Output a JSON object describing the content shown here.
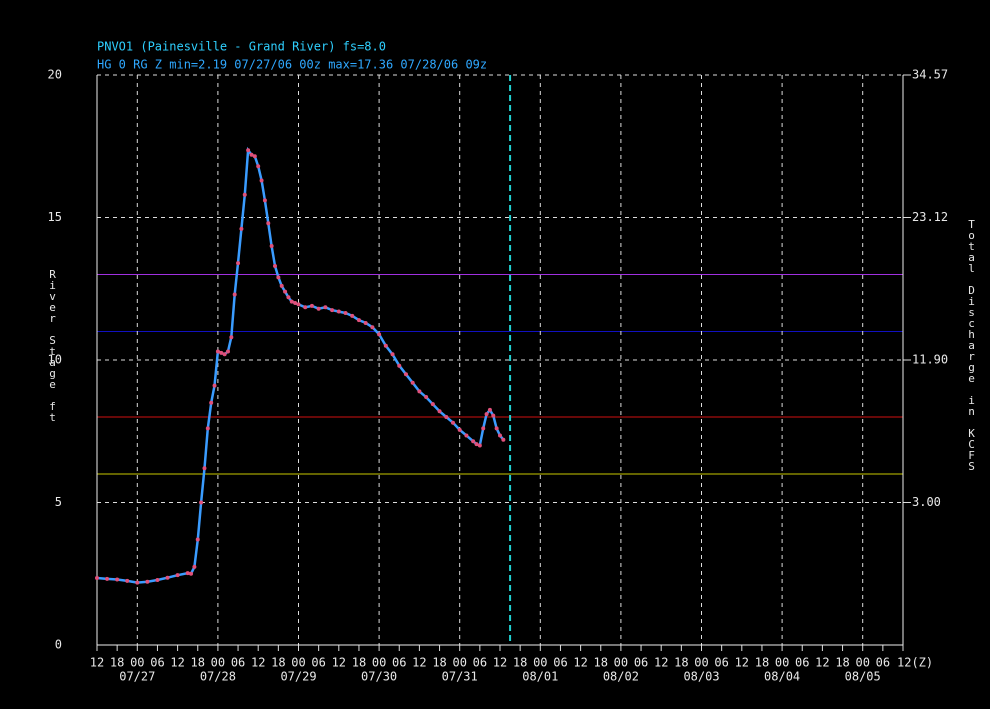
{
  "chart_data": {
    "type": "line",
    "title": "PNVO1 (Painesville - Grand River) fs=8.0",
    "subtitle": "HG 0 RG Z min=2.19 07/27/06 00z max=17.36 07/28/06 09z",
    "ylabel": "River Stage ft",
    "y2label": "Total Discharge in KCFS",
    "xlim": [
      "07/26/06 12z",
      "08/05/06 12z"
    ],
    "ylim": [
      0,
      20
    ],
    "yticks": [
      0,
      5,
      10,
      15,
      20
    ],
    "y2ticks": [
      {
        "value": 3,
        "label": "3.00",
        "stage": 5
      },
      {
        "value": 11.9,
        "label": "11.90",
        "stage": 10
      },
      {
        "value": 23.12,
        "label": "23.12",
        "stage": 15
      },
      {
        "value": 34.57,
        "label": "34.57",
        "stage": 20
      }
    ],
    "xticks": [
      {
        "value": "07/26/06 12z",
        "label": "12"
      },
      {
        "value": "07/26/06 18z",
        "label": "18"
      },
      {
        "value": "07/27/06 00z",
        "label": "00"
      },
      {
        "value": "07/27/06 06z",
        "label": "06"
      },
      {
        "value": "07/27/06 12z",
        "label": "12"
      },
      {
        "value": "07/27/06 18z",
        "label": "18"
      },
      {
        "value": "07/28/06 00z",
        "label": "00"
      },
      {
        "value": "07/28/06 06z",
        "label": "06"
      },
      {
        "value": "07/28/06 12z",
        "label": "12"
      },
      {
        "value": "07/28/06 18z",
        "label": "18"
      },
      {
        "value": "07/29/06 00z",
        "label": "00"
      },
      {
        "value": "07/29/06 06z",
        "label": "06"
      },
      {
        "value": "07/29/06 12z",
        "label": "12"
      },
      {
        "value": "07/29/06 18z",
        "label": "18"
      },
      {
        "value": "07/30/06 00z",
        "label": "00"
      },
      {
        "value": "07/30/06 06z",
        "label": "06"
      },
      {
        "value": "07/30/06 12z",
        "label": "12"
      },
      {
        "value": "07/30/06 18z",
        "label": "18"
      },
      {
        "value": "07/31/06 00z",
        "label": "00"
      },
      {
        "value": "07/31/06 06z",
        "label": "06"
      },
      {
        "value": "07/31/06 12z",
        "label": "12"
      },
      {
        "value": "07/31/06 18z",
        "label": "18"
      },
      {
        "value": "08/01/06 00z",
        "label": "00"
      },
      {
        "value": "08/01/06 06z",
        "label": "06"
      },
      {
        "value": "08/01/06 12z",
        "label": "12"
      },
      {
        "value": "08/01/06 18z",
        "label": "18"
      },
      {
        "value": "08/02/06 00z",
        "label": "00"
      },
      {
        "value": "08/02/06 06z",
        "label": "06"
      },
      {
        "value": "08/02/06 12z",
        "label": "12"
      },
      {
        "value": "08/02/06 18z",
        "label": "18"
      },
      {
        "value": "08/03/06 00z",
        "label": "00"
      },
      {
        "value": "08/03/06 06z",
        "label": "06"
      },
      {
        "value": "08/03/06 12z",
        "label": "12"
      },
      {
        "value": "08/03/06 18z",
        "label": "18"
      },
      {
        "value": "08/04/06 00z",
        "label": "00"
      },
      {
        "value": "08/04/06 06z",
        "label": "06"
      },
      {
        "value": "08/04/06 12z",
        "label": "12"
      },
      {
        "value": "08/04/06 18z",
        "label": "18"
      },
      {
        "value": "08/05/06 00z",
        "label": "00"
      },
      {
        "value": "08/05/06 06z",
        "label": "06"
      },
      {
        "value": "08/05/06 12z",
        "label": "12(Z)"
      }
    ],
    "date_labels": [
      {
        "value": "07/27/06 00z",
        "label": "07/27"
      },
      {
        "value": "07/28/06 00z",
        "label": "07/28"
      },
      {
        "value": "07/29/06 00z",
        "label": "07/29"
      },
      {
        "value": "07/30/06 00z",
        "label": "07/30"
      },
      {
        "value": "07/31/06 00z",
        "label": "07/31"
      },
      {
        "value": "08/01/06 00z",
        "label": "08/01"
      },
      {
        "value": "08/02/06 00z",
        "label": "08/02"
      },
      {
        "value": "08/03/06 00z",
        "label": "08/03"
      },
      {
        "value": "08/04/06 00z",
        "label": "08/04"
      },
      {
        "value": "08/05/06 00z",
        "label": "08/05"
      }
    ],
    "grid": true,
    "thresholds": [
      {
        "value": 13,
        "color": "#a030e0"
      },
      {
        "value": 11,
        "color": "#1010c0"
      },
      {
        "value": 8,
        "color": "#d01010"
      },
      {
        "value": 6,
        "color": "#c8c800"
      }
    ],
    "current_time": {
      "value": "07/31/06 15z",
      "color": "#20d0d0"
    },
    "x": [
      "07/26/06 12z",
      "07/26/06 15z",
      "07/26/06 18z",
      "07/26/06 21z",
      "07/27/06 00z",
      "07/27/06 03z",
      "07/27/06 06z",
      "07/27/06 09z",
      "07/27/06 12z",
      "07/27/06 15z",
      "07/27/06 16z",
      "07/27/06 17z",
      "07/27/06 18z",
      "07/27/06 19z",
      "07/27/06 20z",
      "07/27/06 21z",
      "07/27/06 22z",
      "07/27/06 23z",
      "07/28/06 00z",
      "07/28/06 01z",
      "07/28/06 02z",
      "07/28/06 03z",
      "07/28/06 04z",
      "07/28/06 05z",
      "07/28/06 06z",
      "07/28/06 07z",
      "07/28/06 08z",
      "07/28/06 09z",
      "07/28/06 10z",
      "07/28/06 11z",
      "07/28/06 12z",
      "07/28/06 13z",
      "07/28/06 14z",
      "07/28/06 15z",
      "07/28/06 16z",
      "07/28/06 17z",
      "07/28/06 18z",
      "07/28/06 19z",
      "07/28/06 20z",
      "07/28/06 21z",
      "07/28/06 22z",
      "07/28/06 23z",
      "07/29/06 00z",
      "07/29/06 02z",
      "07/29/06 04z",
      "07/29/06 06z",
      "07/29/06 08z",
      "07/29/06 10z",
      "07/29/06 12z",
      "07/29/06 14z",
      "07/29/06 16z",
      "07/29/06 18z",
      "07/29/06 20z",
      "07/29/06 22z",
      "07/30/06 00z",
      "07/30/06 02z",
      "07/30/06 04z",
      "07/30/06 06z",
      "07/30/06 08z",
      "07/30/06 10z",
      "07/30/06 12z",
      "07/30/06 14z",
      "07/30/06 16z",
      "07/30/06 18z",
      "07/30/06 20z",
      "07/30/06 22z",
      "07/31/06 00z",
      "07/31/06 02z",
      "07/31/06 04z",
      "07/31/06 05z",
      "07/31/06 06z",
      "07/31/06 07z",
      "07/31/06 08z",
      "07/31/06 09z",
      "07/31/06 10z",
      "07/31/06 11z",
      "07/31/06 12z",
      "07/31/06 13z"
    ],
    "series": [
      {
        "color": "#3a9cff",
        "marker_color": "#e0507a",
        "values": [
          2.35,
          2.32,
          2.3,
          2.25,
          2.19,
          2.22,
          2.28,
          2.36,
          2.45,
          2.52,
          2.5,
          2.74,
          3.7,
          5.0,
          6.2,
          7.6,
          8.5,
          9.1,
          10.3,
          10.25,
          10.2,
          10.3,
          10.8,
          12.3,
          13.4,
          14.6,
          15.8,
          17.36,
          17.2,
          17.15,
          16.8,
          16.3,
          15.6,
          14.8,
          14.0,
          13.3,
          12.9,
          12.6,
          12.4,
          12.2,
          12.05,
          12.0,
          11.95,
          11.85,
          11.9,
          11.8,
          11.85,
          11.75,
          11.7,
          11.65,
          11.55,
          11.4,
          11.3,
          11.15,
          10.9,
          10.5,
          10.2,
          9.8,
          9.5,
          9.2,
          8.9,
          8.7,
          8.45,
          8.2,
          8.0,
          7.8,
          7.55,
          7.35,
          7.15,
          7.05,
          7.0,
          7.6,
          8.1,
          8.25,
          8.05,
          7.6,
          7.35,
          7.2
        ]
      }
    ]
  }
}
